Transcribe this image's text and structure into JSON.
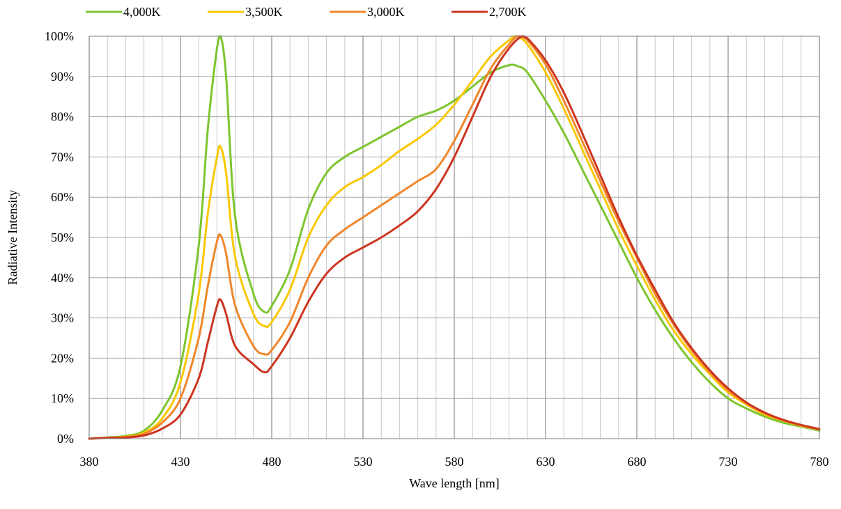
{
  "chart_data": {
    "type": "line",
    "title": "",
    "xlabel": "Wave length [nm]",
    "ylabel": "Radiative Intensity",
    "xlim": [
      380,
      780
    ],
    "ylim": [
      0,
      100
    ],
    "x_ticks": [
      "380",
      "430",
      "480",
      "530",
      "580",
      "630",
      "680",
      "730",
      "780"
    ],
    "y_ticks": [
      "0%",
      "10%",
      "20%",
      "30%",
      "40%",
      "50%",
      "60%",
      "70%",
      "80%",
      "90%",
      "100%"
    ],
    "x_minor_step": 10,
    "y_major_step": 10,
    "grid": true,
    "legend_position": "top",
    "series": [
      {
        "name": "4,000K",
        "color": "#7dc52e",
        "points": [
          [
            380,
            0
          ],
          [
            390,
            0.3
          ],
          [
            400,
            0.7
          ],
          [
            410,
            2
          ],
          [
            420,
            7
          ],
          [
            430,
            18
          ],
          [
            440,
            48
          ],
          [
            445,
            77
          ],
          [
            450,
            97
          ],
          [
            452,
            100
          ],
          [
            455,
            90
          ],
          [
            460,
            55
          ],
          [
            470,
            36
          ],
          [
            476,
            31.5
          ],
          [
            480,
            33
          ],
          [
            490,
            42
          ],
          [
            500,
            57
          ],
          [
            510,
            66
          ],
          [
            520,
            70
          ],
          [
            530,
            72.5
          ],
          [
            540,
            75
          ],
          [
            550,
            77.5
          ],
          [
            560,
            80
          ],
          [
            570,
            81.5
          ],
          [
            580,
            84
          ],
          [
            590,
            87.5
          ],
          [
            600,
            91
          ],
          [
            610,
            92.8
          ],
          [
            615,
            92.5
          ],
          [
            620,
            91
          ],
          [
            630,
            84
          ],
          [
            640,
            76
          ],
          [
            650,
            67
          ],
          [
            660,
            58
          ],
          [
            670,
            49
          ],
          [
            680,
            40
          ],
          [
            690,
            32
          ],
          [
            700,
            25
          ],
          [
            710,
            19
          ],
          [
            720,
            14
          ],
          [
            730,
            10
          ],
          [
            740,
            7.5
          ],
          [
            750,
            5.5
          ],
          [
            760,
            4
          ],
          [
            770,
            3
          ],
          [
            780,
            2
          ]
        ]
      },
      {
        "name": "3,500K",
        "color": "#f9c800",
        "points": [
          [
            380,
            0
          ],
          [
            390,
            0.2
          ],
          [
            400,
            0.5
          ],
          [
            410,
            1.5
          ],
          [
            420,
            5
          ],
          [
            430,
            14
          ],
          [
            440,
            36
          ],
          [
            445,
            56
          ],
          [
            450,
            70
          ],
          [
            452,
            72.5
          ],
          [
            455,
            66
          ],
          [
            460,
            45
          ],
          [
            470,
            31
          ],
          [
            476,
            28
          ],
          [
            480,
            29
          ],
          [
            490,
            37
          ],
          [
            500,
            50
          ],
          [
            510,
            58
          ],
          [
            520,
            62.5
          ],
          [
            530,
            65
          ],
          [
            540,
            68
          ],
          [
            550,
            71.5
          ],
          [
            560,
            74.5
          ],
          [
            570,
            78
          ],
          [
            580,
            83
          ],
          [
            590,
            89
          ],
          [
            600,
            95
          ],
          [
            610,
            99
          ],
          [
            614,
            100
          ],
          [
            620,
            98
          ],
          [
            630,
            91
          ],
          [
            640,
            82
          ],
          [
            650,
            72
          ],
          [
            660,
            62
          ],
          [
            670,
            52
          ],
          [
            680,
            43
          ],
          [
            690,
            34.5
          ],
          [
            700,
            27
          ],
          [
            710,
            21
          ],
          [
            720,
            16
          ],
          [
            730,
            11.5
          ],
          [
            740,
            8.5
          ],
          [
            750,
            6
          ],
          [
            760,
            4.5
          ],
          [
            770,
            3.2
          ],
          [
            780,
            2.3
          ]
        ]
      },
      {
        "name": "3,000K",
        "color": "#f0862a",
        "points": [
          [
            380,
            0
          ],
          [
            390,
            0.2
          ],
          [
            400,
            0.4
          ],
          [
            410,
            1.2
          ],
          [
            420,
            4
          ],
          [
            430,
            10
          ],
          [
            440,
            25
          ],
          [
            445,
            38
          ],
          [
            450,
            49
          ],
          [
            452,
            50.5
          ],
          [
            455,
            46
          ],
          [
            460,
            33
          ],
          [
            470,
            23
          ],
          [
            476,
            21
          ],
          [
            480,
            22
          ],
          [
            490,
            29
          ],
          [
            500,
            40
          ],
          [
            510,
            48
          ],
          [
            520,
            52
          ],
          [
            530,
            55
          ],
          [
            540,
            58
          ],
          [
            550,
            61
          ],
          [
            560,
            64
          ],
          [
            570,
            67
          ],
          [
            580,
            74
          ],
          [
            590,
            83
          ],
          [
            600,
            92
          ],
          [
            610,
            98
          ],
          [
            615,
            100
          ],
          [
            620,
            99
          ],
          [
            630,
            93
          ],
          [
            640,
            84
          ],
          [
            650,
            74
          ],
          [
            660,
            64
          ],
          [
            670,
            54
          ],
          [
            680,
            45
          ],
          [
            690,
            36
          ],
          [
            700,
            28.5
          ],
          [
            710,
            22
          ],
          [
            720,
            16.5
          ],
          [
            730,
            12
          ],
          [
            740,
            8.8
          ],
          [
            750,
            6.3
          ],
          [
            760,
            4.6
          ],
          [
            770,
            3.3
          ],
          [
            780,
            2.3
          ]
        ]
      },
      {
        "name": "2,700K",
        "color": "#cc3520",
        "points": [
          [
            380,
            0
          ],
          [
            390,
            0.2
          ],
          [
            400,
            0.3
          ],
          [
            410,
            0.8
          ],
          [
            420,
            2.5
          ],
          [
            430,
            6
          ],
          [
            440,
            15
          ],
          [
            445,
            24
          ],
          [
            450,
            33
          ],
          [
            452,
            34.5
          ],
          [
            455,
            31
          ],
          [
            460,
            23
          ],
          [
            470,
            18.5
          ],
          [
            476,
            16.5
          ],
          [
            480,
            18
          ],
          [
            490,
            25
          ],
          [
            500,
            34
          ],
          [
            510,
            41
          ],
          [
            520,
            45
          ],
          [
            530,
            47.5
          ],
          [
            540,
            50
          ],
          [
            550,
            53
          ],
          [
            560,
            56.5
          ],
          [
            570,
            62
          ],
          [
            580,
            70
          ],
          [
            590,
            80
          ],
          [
            600,
            90
          ],
          [
            610,
            97
          ],
          [
            617,
            100
          ],
          [
            620,
            99.5
          ],
          [
            630,
            94
          ],
          [
            640,
            86
          ],
          [
            650,
            76
          ],
          [
            660,
            65.5
          ],
          [
            670,
            55
          ],
          [
            680,
            45.5
          ],
          [
            690,
            37
          ],
          [
            700,
            29
          ],
          [
            710,
            22.5
          ],
          [
            720,
            17
          ],
          [
            730,
            12.5
          ],
          [
            740,
            9
          ],
          [
            750,
            6.5
          ],
          [
            760,
            4.7
          ],
          [
            770,
            3.4
          ],
          [
            780,
            2.4
          ]
        ]
      }
    ]
  }
}
